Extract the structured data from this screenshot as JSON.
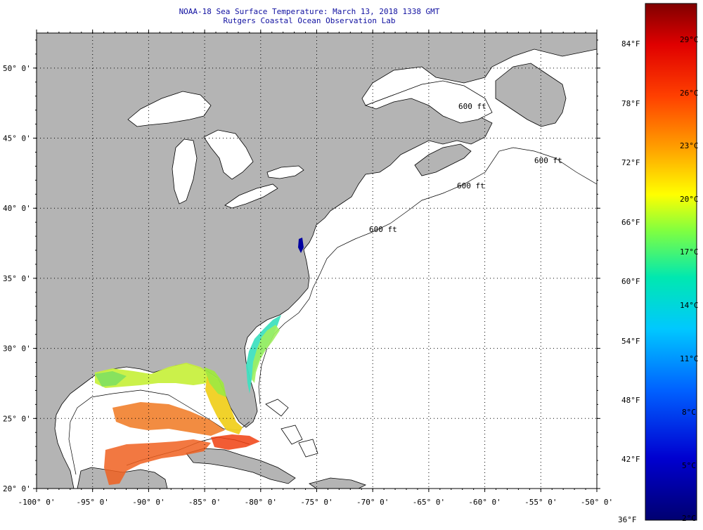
{
  "title": {
    "line1": "NOAA-18 Sea Surface Temperature:  March 13, 2018 1338 GMT",
    "line2": "Rutgers Coastal Ocean Observation Lab"
  },
  "map": {
    "lon_range": [
      -100,
      -50
    ],
    "lat_range": [
      20,
      52.5
    ],
    "lon_labels": [
      "-100° 0'",
      "-95° 0'",
      "-90° 0'",
      "-85° 0'",
      "-80° 0'",
      "-75° 0'",
      "-70° 0'",
      "-65° 0'",
      "-60° 0'",
      "-55° 0'",
      "-50° 0'"
    ],
    "lat_labels": [
      "20° 0'",
      "25° 0'",
      "30° 0'",
      "35° 0'",
      "40° 0'",
      "45° 0'",
      "50° 0'"
    ],
    "contour_labels": [
      "600 ft",
      "600 ft",
      "600 ft",
      "600 ft"
    ],
    "land_color": "#b4b4b4",
    "ocean_color": "#ffffff"
  },
  "colorbar": {
    "fahrenheit_labels": [
      "84°F",
      "78°F",
      "72°F",
      "66°F",
      "60°F",
      "54°F",
      "48°F",
      "42°F",
      "36°F"
    ],
    "celsius_labels": [
      "29°C",
      "26°C",
      "23°C",
      "20°C",
      "17°C",
      "14°C",
      "11°C",
      "8°C",
      "5°C",
      "2°C"
    ],
    "colors": [
      "#8b0000",
      "#ff0000",
      "#ff8c00",
      "#ffff00",
      "#7fff00",
      "#00e5c0",
      "#00bfff",
      "#0050ff",
      "#0000c8",
      "#000080"
    ]
  }
}
